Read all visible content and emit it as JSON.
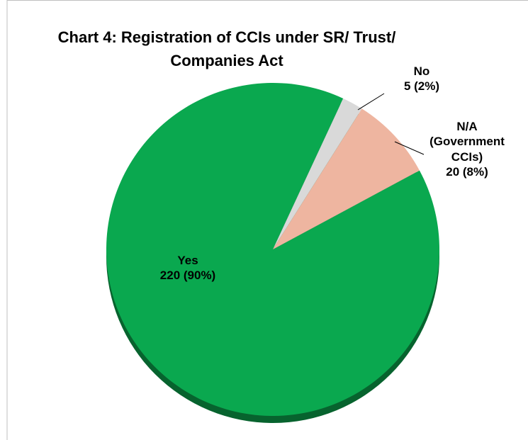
{
  "chart_data": {
    "type": "pie",
    "title": "Chart 4: Registration of CCIs under SR/ Trust/ Companies Act",
    "categories": [
      "Yes",
      "No",
      "N/A (Government CCIs)"
    ],
    "values": [
      220,
      5,
      20
    ],
    "value_labels": [
      "220 (90%)",
      "5 (2%)",
      "20 (8%)"
    ],
    "colors": [
      "#0aa84f",
      "#d9d9d9",
      "#eeb5a0"
    ]
  }
}
